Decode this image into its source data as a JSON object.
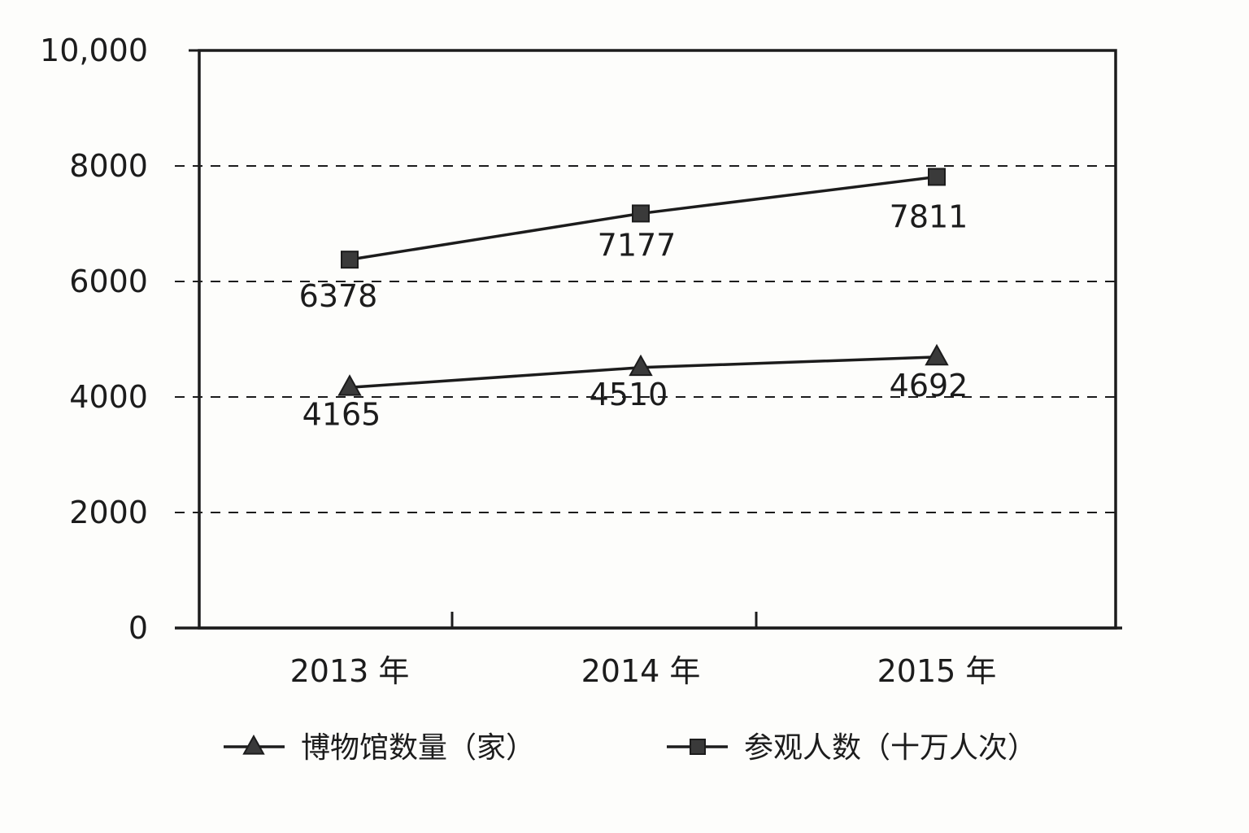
{
  "chart_data": {
    "type": "line",
    "categories": [
      "2013 年",
      "2014 年",
      "2015 年"
    ],
    "series": [
      {
        "name": "博物馆数量（家）",
        "marker": "triangle",
        "values": [
          4165,
          4510,
          4692
        ],
        "labels": [
          "4165",
          "4510",
          "4692"
        ]
      },
      {
        "name": "参观人数（十万人次）",
        "marker": "square",
        "values": [
          6378,
          7177,
          7811
        ],
        "labels": [
          "6378",
          "7177",
          "7811"
        ]
      }
    ],
    "ylim": [
      0,
      10000
    ],
    "yticks": [
      0,
      2000,
      4000,
      6000,
      8000,
      10000
    ],
    "ytick_labels": [
      "0",
      "2000",
      "4000",
      "6000",
      "8000",
      "10,000"
    ],
    "grid": "dashed horizontal",
    "legend": "bottom",
    "colors": {
      "ink": "#1c1c1c",
      "background": "#fdfdfb"
    }
  }
}
